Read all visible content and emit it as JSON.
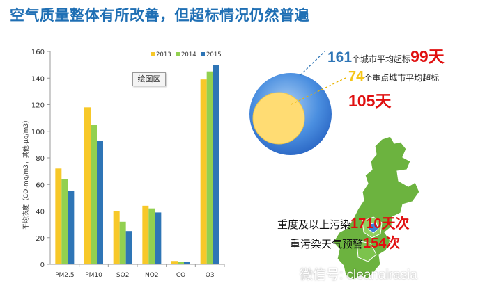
{
  "title": "空气质量整体有所改善，但超标情况仍然普遍",
  "chart_tag": "绘图区",
  "chart_data": {
    "type": "bar",
    "categories": [
      "PM2.5",
      "PM10",
      "SO2",
      "NO2",
      "CO",
      "O3"
    ],
    "series": [
      {
        "name": "2013",
        "values": [
          72,
          118,
          40,
          44,
          2.5,
          139
        ],
        "color": "#f7c829"
      },
      {
        "name": "2014",
        "values": [
          64,
          105,
          32,
          42,
          2.0,
          145
        ],
        "color": "#92d050"
      },
      {
        "name": "2015",
        "values": [
          55,
          93,
          25,
          39,
          1.8,
          150
        ],
        "color": "#2e75b6"
      }
    ],
    "ylabel": "平均浓度（CO-mg/m3，其他-μg/m3）",
    "ylim": [
      0,
      160
    ],
    "yticks": [
      0,
      20,
      40,
      60,
      80,
      100,
      120,
      140,
      160
    ],
    "legend": "top-right",
    "grid": false
  },
  "stats": {
    "cities_count": "161",
    "cities_text": "个城市平均超标",
    "cities_days": "99天",
    "key_count": "74",
    "key_text": "个重点城市平均超标",
    "key_days": "105天",
    "heavy_label": "重度及以上污染",
    "heavy_value": "1710天次",
    "alert_label": "重污染天气预警",
    "alert_value": "154次"
  },
  "colors": {
    "title": "#1f6fb4",
    "map_green": "#6cb33f",
    "circle_blue": "#3b7fd6",
    "circle_yellow": "#ffdc73",
    "red": "#e01010"
  },
  "icons": [
    "wechat-icon"
  ],
  "watermark": "微信号: cleanairasia"
}
